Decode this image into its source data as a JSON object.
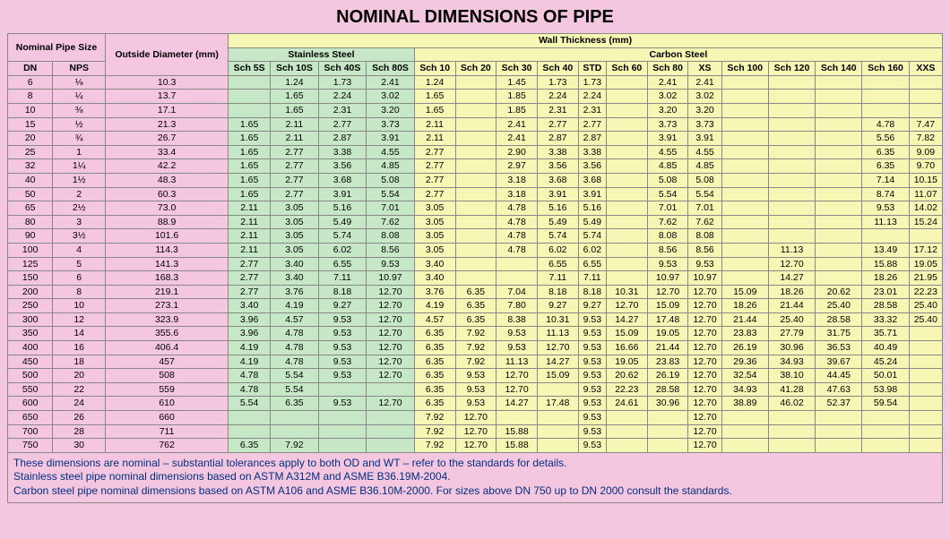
{
  "title": "NOMINAL DIMENSIONS OF PIPE",
  "headers": {
    "nps_group": "Nominal Pipe Size",
    "od": "Outside Diameter (mm)",
    "wt": "Wall Thickness (mm)",
    "ss": "Stainless Steel",
    "cs": "Carbon Steel",
    "dn": "DN",
    "nps": "NPS",
    "s5s": "Sch 5S",
    "s10s": "Sch 10S",
    "s40s": "Sch 40S",
    "s80s": "Sch 80S",
    "s10": "Sch 10",
    "s20": "Sch 20",
    "s30": "Sch 30",
    "s40": "Sch 40",
    "std": "STD",
    "s60": "Sch 60",
    "s80": "Sch 80",
    "xs": "XS",
    "s100": "Sch 100",
    "s120": "Sch 120",
    "s140": "Sch 140",
    "s160": "Sch 160",
    "xxs": "XXS"
  },
  "colors": {
    "page_bg": "#f5c6e0",
    "pink": "#f5c6e0",
    "green": "#c6e8c6",
    "yellow": "#f7f7b5",
    "border": "#888888",
    "footnote_text": "#003080"
  },
  "rows": [
    {
      "dn": "6",
      "nps": "⅛",
      "od": "10.3",
      "s5s": "",
      "s10s": "1.24",
      "s40s": "1.73",
      "s80s": "2.41",
      "s10": "1.24",
      "s20": "",
      "s30": "1.45",
      "s40": "1.73",
      "std": "1.73",
      "s60": "",
      "s80": "2.41",
      "xs": "2.41",
      "s100": "",
      "s120": "",
      "s140": "",
      "s160": "",
      "xxs": ""
    },
    {
      "dn": "8",
      "nps": "¼",
      "od": "13.7",
      "s5s": "",
      "s10s": "1.65",
      "s40s": "2.24",
      "s80s": "3.02",
      "s10": "1.65",
      "s20": "",
      "s30": "1.85",
      "s40": "2.24",
      "std": "2.24",
      "s60": "",
      "s80": "3.02",
      "xs": "3.02",
      "s100": "",
      "s120": "",
      "s140": "",
      "s160": "",
      "xxs": ""
    },
    {
      "dn": "10",
      "nps": "⅜",
      "od": "17.1",
      "s5s": "",
      "s10s": "1.65",
      "s40s": "2.31",
      "s80s": "3.20",
      "s10": "1.65",
      "s20": "",
      "s30": "1.85",
      "s40": "2.31",
      "std": "2.31",
      "s60": "",
      "s80": "3.20",
      "xs": "3.20",
      "s100": "",
      "s120": "",
      "s140": "",
      "s160": "",
      "xxs": ""
    },
    {
      "dn": "15",
      "nps": "½",
      "od": "21.3",
      "s5s": "1.65",
      "s10s": "2.11",
      "s40s": "2.77",
      "s80s": "3.73",
      "s10": "2.11",
      "s20": "",
      "s30": "2.41",
      "s40": "2.77",
      "std": "2.77",
      "s60": "",
      "s80": "3.73",
      "xs": "3.73",
      "s100": "",
      "s120": "",
      "s140": "",
      "s160": "4.78",
      "xxs": "7.47"
    },
    {
      "dn": "20",
      "nps": "¾",
      "od": "26.7",
      "s5s": "1.65",
      "s10s": "2.11",
      "s40s": "2.87",
      "s80s": "3.91",
      "s10": "2.11",
      "s20": "",
      "s30": "2.41",
      "s40": "2.87",
      "std": "2.87",
      "s60": "",
      "s80": "3.91",
      "xs": "3.91",
      "s100": "",
      "s120": "",
      "s140": "",
      "s160": "5.56",
      "xxs": "7.82"
    },
    {
      "dn": "25",
      "nps": "1",
      "od": "33.4",
      "s5s": "1.65",
      "s10s": "2.77",
      "s40s": "3.38",
      "s80s": "4.55",
      "s10": "2.77",
      "s20": "",
      "s30": "2.90",
      "s40": "3.38",
      "std": "3.38",
      "s60": "",
      "s80": "4.55",
      "xs": "4.55",
      "s100": "",
      "s120": "",
      "s140": "",
      "s160": "6.35",
      "xxs": "9.09"
    },
    {
      "dn": "32",
      "nps": "1¼",
      "od": "42.2",
      "s5s": "1.65",
      "s10s": "2.77",
      "s40s": "3.56",
      "s80s": "4.85",
      "s10": "2.77",
      "s20": "",
      "s30": "2.97",
      "s40": "3.56",
      "std": "3.56",
      "s60": "",
      "s80": "4.85",
      "xs": "4.85",
      "s100": "",
      "s120": "",
      "s140": "",
      "s160": "6.35",
      "xxs": "9.70"
    },
    {
      "dn": "40",
      "nps": "1½",
      "od": "48.3",
      "s5s": "1.65",
      "s10s": "2.77",
      "s40s": "3.68",
      "s80s": "5.08",
      "s10": "2.77",
      "s20": "",
      "s30": "3.18",
      "s40": "3.68",
      "std": "3.68",
      "s60": "",
      "s80": "5.08",
      "xs": "5.08",
      "s100": "",
      "s120": "",
      "s140": "",
      "s160": "7.14",
      "xxs": "10.15"
    },
    {
      "dn": "50",
      "nps": "2",
      "od": "60.3",
      "s5s": "1.65",
      "s10s": "2.77",
      "s40s": "3.91",
      "s80s": "5.54",
      "s10": "2.77",
      "s20": "",
      "s30": "3.18",
      "s40": "3.91",
      "std": "3.91",
      "s60": "",
      "s80": "5.54",
      "xs": "5.54",
      "s100": "",
      "s120": "",
      "s140": "",
      "s160": "8.74",
      "xxs": "11.07"
    },
    {
      "dn": "65",
      "nps": "2½",
      "od": "73.0",
      "s5s": "2.11",
      "s10s": "3.05",
      "s40s": "5.16",
      "s80s": "7.01",
      "s10": "3.05",
      "s20": "",
      "s30": "4.78",
      "s40": "5.16",
      "std": "5.16",
      "s60": "",
      "s80": "7.01",
      "xs": "7.01",
      "s100": "",
      "s120": "",
      "s140": "",
      "s160": "9.53",
      "xxs": "14.02"
    },
    {
      "dn": "80",
      "nps": "3",
      "od": "88.9",
      "s5s": "2.11",
      "s10s": "3.05",
      "s40s": "5.49",
      "s80s": "7.62",
      "s10": "3.05",
      "s20": "",
      "s30": "4.78",
      "s40": "5.49",
      "std": "5.49",
      "s60": "",
      "s80": "7.62",
      "xs": "7.62",
      "s100": "",
      "s120": "",
      "s140": "",
      "s160": "11.13",
      "xxs": "15.24"
    },
    {
      "dn": "90",
      "nps": "3½",
      "od": "101.6",
      "s5s": "2.11",
      "s10s": "3.05",
      "s40s": "5.74",
      "s80s": "8.08",
      "s10": "3.05",
      "s20": "",
      "s30": "4.78",
      "s40": "5.74",
      "std": "5.74",
      "s60": "",
      "s80": "8.08",
      "xs": "8.08",
      "s100": "",
      "s120": "",
      "s140": "",
      "s160": "",
      "xxs": ""
    },
    {
      "dn": "100",
      "nps": "4",
      "od": "114.3",
      "s5s": "2.11",
      "s10s": "3.05",
      "s40s": "6.02",
      "s80s": "8.56",
      "s10": "3.05",
      "s20": "",
      "s30": "4.78",
      "s40": "6.02",
      "std": "6.02",
      "s60": "",
      "s80": "8.56",
      "xs": "8.56",
      "s100": "",
      "s120": "11.13",
      "s140": "",
      "s160": "13.49",
      "xxs": "17.12"
    },
    {
      "dn": "125",
      "nps": "5",
      "od": "141.3",
      "s5s": "2.77",
      "s10s": "3.40",
      "s40s": "6.55",
      "s80s": "9.53",
      "s10": "3.40",
      "s20": "",
      "s30": "",
      "s40": "6.55",
      "std": "6.55",
      "s60": "",
      "s80": "9.53",
      "xs": "9.53",
      "s100": "",
      "s120": "12.70",
      "s140": "",
      "s160": "15.88",
      "xxs": "19.05"
    },
    {
      "dn": "150",
      "nps": "6",
      "od": "168.3",
      "s5s": "2.77",
      "s10s": "3.40",
      "s40s": "7.11",
      "s80s": "10.97",
      "s10": "3.40",
      "s20": "",
      "s30": "",
      "s40": "7.11",
      "std": "7.11",
      "s60": "",
      "s80": "10.97",
      "xs": "10.97",
      "s100": "",
      "s120": "14.27",
      "s140": "",
      "s160": "18.26",
      "xxs": "21.95"
    },
    {
      "dn": "200",
      "nps": "8",
      "od": "219.1",
      "s5s": "2.77",
      "s10s": "3.76",
      "s40s": "8.18",
      "s80s": "12.70",
      "s10": "3.76",
      "s20": "6.35",
      "s30": "7.04",
      "s40": "8.18",
      "std": "8.18",
      "s60": "10.31",
      "s80": "12.70",
      "xs": "12.70",
      "s100": "15.09",
      "s120": "18.26",
      "s140": "20.62",
      "s160": "23.01",
      "xxs": "22.23"
    },
    {
      "dn": "250",
      "nps": "10",
      "od": "273.1",
      "s5s": "3.40",
      "s10s": "4.19",
      "s40s": "9.27",
      "s80s": "12.70",
      "s10": "4.19",
      "s20": "6.35",
      "s30": "7.80",
      "s40": "9.27",
      "std": "9.27",
      "s60": "12.70",
      "s80": "15.09",
      "xs": "12.70",
      "s100": "18.26",
      "s120": "21.44",
      "s140": "25.40",
      "s160": "28.58",
      "xxs": "25.40"
    },
    {
      "dn": "300",
      "nps": "12",
      "od": "323.9",
      "s5s": "3.96",
      "s10s": "4.57",
      "s40s": "9.53",
      "s80s": "12.70",
      "s10": "4.57",
      "s20": "6.35",
      "s30": "8.38",
      "s40": "10.31",
      "std": "9.53",
      "s60": "14.27",
      "s80": "17.48",
      "xs": "12.70",
      "s100": "21.44",
      "s120": "25.40",
      "s140": "28.58",
      "s160": "33.32",
      "xxs": "25.40"
    },
    {
      "dn": "350",
      "nps": "14",
      "od": "355.6",
      "s5s": "3.96",
      "s10s": "4.78",
      "s40s": "9.53",
      "s80s": "12.70",
      "s10": "6.35",
      "s20": "7.92",
      "s30": "9.53",
      "s40": "11.13",
      "std": "9.53",
      "s60": "15.09",
      "s80": "19.05",
      "xs": "12.70",
      "s100": "23.83",
      "s120": "27.79",
      "s140": "31.75",
      "s160": "35.71",
      "xxs": ""
    },
    {
      "dn": "400",
      "nps": "16",
      "od": "406.4",
      "s5s": "4.19",
      "s10s": "4.78",
      "s40s": "9.53",
      "s80s": "12.70",
      "s10": "6.35",
      "s20": "7.92",
      "s30": "9.53",
      "s40": "12.70",
      "std": "9.53",
      "s60": "16.66",
      "s80": "21.44",
      "xs": "12.70",
      "s100": "26.19",
      "s120": "30.96",
      "s140": "36.53",
      "s160": "40.49",
      "xxs": ""
    },
    {
      "dn": "450",
      "nps": "18",
      "od": "457",
      "s5s": "4.19",
      "s10s": "4.78",
      "s40s": "9.53",
      "s80s": "12.70",
      "s10": "6.35",
      "s20": "7.92",
      "s30": "11.13",
      "s40": "14.27",
      "std": "9.53",
      "s60": "19.05",
      "s80": "23.83",
      "xs": "12.70",
      "s100": "29.36",
      "s120": "34.93",
      "s140": "39.67",
      "s160": "45.24",
      "xxs": ""
    },
    {
      "dn": "500",
      "nps": "20",
      "od": "508",
      "s5s": "4.78",
      "s10s": "5.54",
      "s40s": "9.53",
      "s80s": "12.70",
      "s10": "6.35",
      "s20": "9.53",
      "s30": "12.70",
      "s40": "15.09",
      "std": "9.53",
      "s60": "20.62",
      "s80": "26.19",
      "xs": "12.70",
      "s100": "32.54",
      "s120": "38.10",
      "s140": "44.45",
      "s160": "50.01",
      "xxs": ""
    },
    {
      "dn": "550",
      "nps": "22",
      "od": "559",
      "s5s": "4.78",
      "s10s": "5.54",
      "s40s": "",
      "s80s": "",
      "s10": "6.35",
      "s20": "9.53",
      "s30": "12.70",
      "s40": "",
      "std": "9.53",
      "s60": "22.23",
      "s80": "28.58",
      "xs": "12.70",
      "s100": "34.93",
      "s120": "41.28",
      "s140": "47.63",
      "s160": "53.98",
      "xxs": ""
    },
    {
      "dn": "600",
      "nps": "24",
      "od": "610",
      "s5s": "5.54",
      "s10s": "6.35",
      "s40s": "9.53",
      "s80s": "12.70",
      "s10": "6.35",
      "s20": "9.53",
      "s30": "14.27",
      "s40": "17.48",
      "std": "9.53",
      "s60": "24.61",
      "s80": "30.96",
      "xs": "12.70",
      "s100": "38.89",
      "s120": "46.02",
      "s140": "52.37",
      "s160": "59.54",
      "xxs": ""
    },
    {
      "dn": "650",
      "nps": "26",
      "od": "660",
      "s5s": "",
      "s10s": "",
      "s40s": "",
      "s80s": "",
      "s10": "7.92",
      "s20": "12.70",
      "s30": "",
      "s40": "",
      "std": "9.53",
      "s60": "",
      "s80": "",
      "xs": "12.70",
      "s100": "",
      "s120": "",
      "s140": "",
      "s160": "",
      "xxs": ""
    },
    {
      "dn": "700",
      "nps": "28",
      "od": "711",
      "s5s": "",
      "s10s": "",
      "s40s": "",
      "s80s": "",
      "s10": "7.92",
      "s20": "12.70",
      "s30": "15.88",
      "s40": "",
      "std": "9.53",
      "s60": "",
      "s80": "",
      "xs": "12.70",
      "s100": "",
      "s120": "",
      "s140": "",
      "s160": "",
      "xxs": ""
    },
    {
      "dn": "750",
      "nps": "30",
      "od": "762",
      "s5s": "6.35",
      "s10s": "7.92",
      "s40s": "",
      "s80s": "",
      "s10": "7.92",
      "s20": "12.70",
      "s30": "15.88",
      "s40": "",
      "std": "9.53",
      "s60": "",
      "s80": "",
      "xs": "12.70",
      "s100": "",
      "s120": "",
      "s140": "",
      "s160": "",
      "xxs": ""
    }
  ],
  "footnote": "These dimensions are nominal – substantial tolerances apply to both OD and WT – refer to the standards for details.\nStainless steel pipe nominal dimensions based on ASTM A312M and ASME B36.19M-2004.\nCarbon steel pipe nominal dimensions based on ASTM A106 and ASME B36.10M-2000. For sizes above DN 750 up to DN 2000 consult the standards."
}
